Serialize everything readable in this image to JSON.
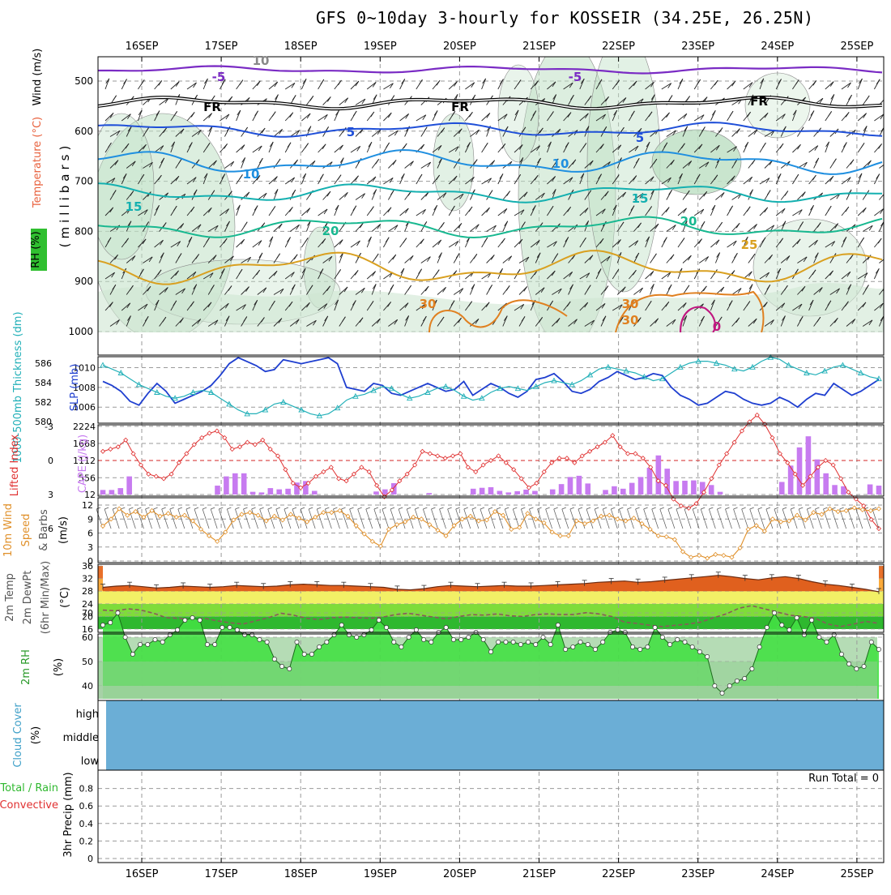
{
  "header": {
    "title": "GFS 0~10day 3-hourly for KOSSEIR (34.25E, 26.25N)"
  },
  "dates": [
    "16SEP",
    "17SEP",
    "18SEP",
    "19SEP",
    "20SEP",
    "21SEP",
    "22SEP",
    "23SEP",
    "24SEP",
    "25SEP"
  ],
  "colors": {
    "temp_label": "#e8603c",
    "wind_label": "#000000",
    "rh_green": "#2fbf2f",
    "slp": "#1f3fd0",
    "thickness": "#22b0b8",
    "cape_bar": "#c77bf0",
    "lifted": "#e03030",
    "wind10": "#e0902a",
    "cloud": "#6baed6"
  },
  "chart_data": [
    {
      "type": "heatmap",
      "panel": "upper-air",
      "ylabel": "(millibars)",
      "ytick_labels": [
        "500",
        "600",
        "700",
        "800",
        "900",
        "1000"
      ],
      "labels": {
        "temperature": "Temperature (°C)",
        "wind": "Wind (m/s)",
        "rh": "RH (%)"
      },
      "isotherm_labels": [
        "-5",
        "-5",
        "FR",
        "FR",
        "FR",
        "5",
        "5",
        "10",
        "10",
        "15",
        "15",
        "20",
        "20",
        "25",
        "30",
        "30",
        "30",
        "10",
        "0"
      ]
    },
    {
      "type": "line",
      "panel": "slp-thickness",
      "ylabel_left": "1000-500mb Thickness (dm)",
      "ylabel_right": "SLP (mb)",
      "yticks_slp": [
        "1010",
        "1008",
        "1006"
      ],
      "yticks_thk": [
        "586",
        "584",
        "582",
        "580"
      ],
      "series": [
        {
          "name": "SLP (mb)",
          "values": [
            1008.6,
            1008.2,
            1007.6,
            1006.6,
            1006.2,
            1007.4,
            1008.4,
            1007.6,
            1006.4,
            1006.8,
            1007.2,
            1007.6,
            1008.2,
            1009.2,
            1010.4,
            1011.0,
            1010.6,
            1010.2,
            1009.6,
            1009.8,
            1010.8,
            1010.6,
            1010.4,
            1010.6,
            1010.8,
            1011.0,
            1010.4,
            1008.0,
            1007.8,
            1007.6,
            1008.4,
            1008.2,
            1007.4,
            1007.2,
            1007.6,
            1008.0,
            1008.4,
            1008.0,
            1007.6,
            1007.8,
            1008.6,
            1007.2,
            1007.8,
            1008.4,
            1008.0,
            1007.4,
            1007.0,
            1007.6,
            1008.8,
            1009.0,
            1009.4,
            1008.6,
            1007.6,
            1007.4,
            1007.8,
            1008.6,
            1009.0,
            1009.6,
            1009.2,
            1008.8,
            1009.0,
            1009.4,
            1009.2,
            1008.0,
            1007.2,
            1006.8,
            1006.2,
            1006.4,
            1007.0,
            1007.6,
            1007.4,
            1006.8,
            1006.4,
            1006.2,
            1006.4,
            1007.0,
            1006.6,
            1006.0,
            1006.8,
            1007.4,
            1007.2,
            1008.4,
            1007.8,
            1007.2,
            1007.6,
            1008.2,
            1008.8
          ]
        },
        {
          "name": "1000-500mb Thickness (dm)",
          "values": [
            585.8,
            585.4,
            585.0,
            584.4,
            583.8,
            583.4,
            583.0,
            582.6,
            582.4,
            582.6,
            583.0,
            583.2,
            583.0,
            582.4,
            581.8,
            581.2,
            580.8,
            580.8,
            581.2,
            581.8,
            582.0,
            581.6,
            581.2,
            580.8,
            580.6,
            580.8,
            581.4,
            582.2,
            582.6,
            582.8,
            583.2,
            583.6,
            583.4,
            582.8,
            582.4,
            582.6,
            583.0,
            583.4,
            583.6,
            583.2,
            582.6,
            582.2,
            582.4,
            583.0,
            583.4,
            583.6,
            583.4,
            583.2,
            583.6,
            584.0,
            584.2,
            584.0,
            583.8,
            584.2,
            584.8,
            585.4,
            585.6,
            585.4,
            585.2,
            585.0,
            584.6,
            584.2,
            584.4,
            585.0,
            585.6,
            586.0,
            586.2,
            586.2,
            586.0,
            585.8,
            585.4,
            585.2,
            585.6,
            586.2,
            586.6,
            586.4,
            585.8,
            585.4,
            585.0,
            584.8,
            585.2,
            585.6,
            585.8,
            585.4,
            585.0,
            584.6,
            584.4
          ]
        }
      ]
    },
    {
      "type": "bar",
      "panel": "cape-lifted",
      "ylabel_left": "Lifted Index",
      "ylabel_right": "CAPE (J/kg)",
      "yticks_li": [
        "-3",
        "0",
        "3",
        "6"
      ],
      "yticks_cape": [
        "2224",
        "1668",
        "1112",
        "556",
        "12"
      ],
      "series": [
        {
          "name": "CAPE (J/kg)",
          "values": [
            160,
            160,
            220,
            600,
            0,
            0,
            0,
            0,
            0,
            0,
            0,
            0,
            0,
            300,
            600,
            700,
            700,
            100,
            80,
            220,
            180,
            200,
            400,
            450,
            130,
            0,
            0,
            0,
            0,
            0,
            0,
            110,
            180,
            380,
            0,
            0,
            0,
            60,
            0,
            0,
            0,
            0,
            200,
            230,
            250,
            130,
            80,
            120,
            170,
            130,
            0,
            180,
            350,
            580,
            620,
            370,
            0,
            160,
            280,
            200,
            390,
            580,
            880,
            1280,
            850,
            450,
            460,
            470,
            420,
            320,
            100,
            0,
            0,
            0,
            0,
            0,
            0,
            420,
            950,
            1540,
            1900,
            1150,
            700,
            320,
            280,
            0,
            0,
            340,
            300
          ]
        },
        {
          "name": "Lifted Index",
          "values": [
            -0.8,
            -1.0,
            -1.2,
            -1.8,
            -0.6,
            0.4,
            1.2,
            1.4,
            1.6,
            1.2,
            0.2,
            -0.6,
            -1.4,
            -2.0,
            -2.4,
            -2.6,
            -2.0,
            -1.0,
            -1.2,
            -1.6,
            -1.4,
            -1.8,
            -1.0,
            -0.4,
            0.8,
            2.0,
            2.4,
            2.0,
            1.4,
            1.0,
            0.6,
            1.6,
            1.8,
            1.2,
            0.6,
            1.0,
            2.2,
            3.2,
            2.6,
            1.8,
            1.2,
            0.4,
            -0.8,
            -0.6,
            -0.4,
            -0.2,
            -0.4,
            -0.6,
            0.6,
            1.0,
            0.4,
            0.0,
            -0.4,
            0.2,
            0.8,
            1.6,
            2.4,
            2.0,
            1.0,
            0.2,
            -0.2,
            -0.2,
            0.2,
            -0.4,
            -0.8,
            -1.2,
            -1.6,
            -2.2,
            -1.2,
            -0.6,
            -0.6,
            -0.2,
            0.6,
            1.8,
            2.2,
            3.4,
            4.0,
            4.2,
            3.8,
            2.8,
            1.6,
            0.4,
            -0.6,
            -1.6,
            -2.6,
            -3.4,
            -4.0,
            -3.2,
            -2.0,
            -0.6,
            0.2,
            1.2,
            2.2,
            1.4,
            0.6,
            0.0,
            0.4,
            1.6,
            2.8,
            3.4,
            4.0,
            5.2,
            6.0
          ]
        }
      ]
    },
    {
      "type": "line",
      "panel": "wind10m",
      "ylabel": "10m Wind Speed & Barbs (m/s)",
      "yticks": [
        "12",
        "9",
        "6",
        "3",
        "0"
      ],
      "series": [
        {
          "name": "10m Wind Speed",
          "values": [
            7.5,
            9.0,
            11.2,
            9.8,
            10.6,
            9.4,
            10.8,
            9.6,
            10.2,
            9.4,
            9.8,
            8.6,
            6.8,
            5.4,
            4.2,
            6.2,
            8.8,
            10.0,
            10.4,
            9.8,
            8.6,
            9.6,
            8.8,
            10.0,
            9.2,
            8.4,
            9.4,
            10.4,
            10.4,
            10.8,
            9.6,
            7.6,
            5.8,
            4.2,
            3.2,
            6.8,
            7.8,
            8.4,
            9.4,
            9.0,
            7.8,
            6.6,
            5.4,
            7.6,
            9.0,
            9.6,
            8.6,
            8.8,
            10.6,
            9.8,
            6.8,
            7.2,
            10.2,
            9.0,
            8.2,
            6.2,
            5.4,
            5.4,
            8.6,
            8.0,
            8.6,
            9.6,
            9.8,
            9.0,
            8.6,
            9.2,
            8.0,
            6.8,
            5.4,
            5.2,
            4.6,
            2.0,
            0.8,
            1.2,
            0.6,
            1.4,
            1.2,
            0.8,
            2.8,
            6.8,
            7.6,
            6.4,
            9.0,
            8.4,
            8.6,
            9.8,
            8.8,
            10.4,
            10.0,
            11.2,
            10.6,
            10.8,
            11.4,
            11.0,
            10.8,
            11.2
          ]
        }
      ]
    },
    {
      "type": "area",
      "panel": "temp-dewpoint",
      "ylabel": "2m Temp 2m DewPt (6hr Min/Max) (°C)",
      "yticks": [
        "36",
        "32",
        "28",
        "24",
        "20",
        "16"
      ],
      "series": [
        {
          "name": "2m Temp",
          "values": [
            29.2,
            29.6,
            29.8,
            29.4,
            29.0,
            29.2,
            29.6,
            29.4,
            29.2,
            29.4,
            29.8,
            29.6,
            29.4,
            29.6,
            30.0,
            30.2,
            30.0,
            29.8,
            29.8,
            29.6,
            29.4,
            29.2,
            28.6,
            28.4,
            28.8,
            29.4,
            29.8,
            29.6,
            29.4,
            29.6,
            29.8,
            29.6,
            29.6,
            29.8,
            30.0,
            30.2,
            30.4,
            30.8,
            31.0,
            31.2,
            30.8,
            31.0,
            31.4,
            31.8,
            32.2,
            32.6,
            33.0,
            32.6,
            32.0,
            31.6,
            32.2,
            32.6,
            32.0,
            31.0,
            30.2,
            29.8,
            29.2,
            28.6,
            27.8
          ]
        },
        {
          "name": "2m DewPt",
          "values": [
            22.0,
            21.8,
            22.4,
            22.0,
            21.0,
            19.6,
            19.4,
            19.0,
            19.4,
            18.6,
            18.0,
            17.6,
            18.6,
            19.6,
            21.0,
            20.4,
            19.4,
            19.0,
            19.6,
            19.8,
            19.6,
            19.4,
            19.8,
            20.6,
            21.0,
            20.4,
            19.8,
            19.2,
            20.0,
            20.6,
            20.4,
            20.8,
            20.2,
            20.0,
            20.6,
            20.8,
            20.6,
            20.6,
            21.2,
            20.8,
            20.0,
            18.2,
            17.8,
            17.2,
            16.8,
            17.2,
            17.6,
            18.2,
            19.6,
            20.8,
            22.6,
            23.4,
            22.4,
            21.4,
            20.4,
            20.0,
            19.4,
            17.6,
            16.8,
            17.6,
            18.4,
            17.8
          ]
        }
      ]
    },
    {
      "type": "area",
      "panel": "rh2m",
      "ylabel": "2m RH (%)",
      "yticks": [
        "70",
        "60",
        "50",
        "40"
      ],
      "series": [
        {
          "name": "2m RH",
          "values": [
            65,
            66,
            70,
            60,
            53,
            57,
            57,
            59,
            58,
            61,
            63,
            67,
            68,
            67,
            57,
            57,
            64,
            64,
            63,
            61,
            61,
            59,
            58,
            51,
            48,
            47,
            58,
            53,
            53,
            56,
            58,
            61,
            65,
            61,
            60,
            61,
            63,
            67,
            64,
            58,
            56,
            60,
            63,
            59,
            58,
            62,
            64,
            59,
            59,
            60,
            62,
            59,
            54,
            58,
            58,
            58,
            57,
            58,
            57,
            60,
            57,
            65,
            55,
            56,
            58,
            57,
            55,
            58,
            62,
            63,
            62,
            56,
            55,
            56,
            64,
            60,
            57,
            59,
            58,
            56,
            54,
            52,
            40,
            37,
            40,
            42,
            43,
            47,
            56,
            64,
            70,
            65,
            63,
            68,
            61,
            67,
            60,
            58,
            61,
            53,
            49,
            47,
            48,
            58,
            55
          ]
        }
      ]
    },
    {
      "type": "area",
      "panel": "cloud-cover",
      "ylabel": "Cloud Cover (%)",
      "levels": [
        "high",
        "middle",
        "low"
      ]
    },
    {
      "type": "bar",
      "panel": "precip",
      "ylabel": "3hr Precip (mm)",
      "legend": [
        "Total / Rain",
        "Convective"
      ],
      "yticks": [
        "0.8",
        "0.6",
        "0.4",
        "0.2",
        "0"
      ],
      "run_total": "Run Total = 0",
      "values": []
    }
  ]
}
